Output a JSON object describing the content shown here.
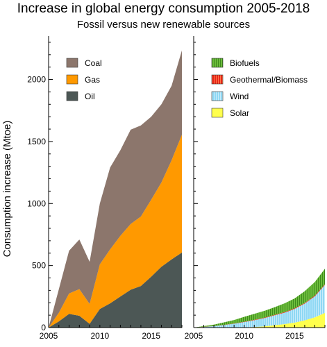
{
  "title": "Increase in global energy consumption 2005-2018",
  "subtitle": "Fossil versus new renewable sources",
  "colors": {
    "coal": "#8c766c",
    "gas": "#ff9900",
    "oil": "#4c5755",
    "biofuels": "#6cbc3c",
    "geothermal": "#e8261a",
    "wind": "#8fd8f4",
    "solar": "#ffff4d"
  },
  "chart_data": [
    {
      "type": "area",
      "stacked": true,
      "x": [
        2005,
        2006,
        2007,
        2008,
        2009,
        2010,
        2011,
        2012,
        2013,
        2014,
        2015,
        2016,
        2017,
        2018
      ],
      "series": [
        {
          "name": "Oil",
          "values": [
            0,
            50,
            110,
            95,
            30,
            150,
            195,
            250,
            305,
            335,
            410,
            490,
            550,
            605
          ]
        },
        {
          "name": "Gas",
          "values": [
            0,
            70,
            165,
            215,
            160,
            360,
            435,
            490,
            530,
            560,
            620,
            680,
            800,
            950
          ]
        },
        {
          "name": "Coal",
          "values": [
            0,
            190,
            345,
            400,
            340,
            490,
            660,
            690,
            760,
            735,
            670,
            630,
            600,
            680
          ]
        }
      ],
      "xlim": [
        2005,
        2018
      ],
      "ylim": [
        0,
        2350
      ],
      "xticks": [
        "2005",
        "2010",
        "2015"
      ],
      "yticks": [
        "0",
        "500",
        "1000",
        "1500",
        "2000"
      ],
      "ylabel": "Consumption increase (Mtoe)",
      "legend": [
        "Coal",
        "Gas",
        "Oil"
      ],
      "legend_position": "top-left"
    },
    {
      "type": "area",
      "stacked": true,
      "x": [
        2005,
        2006,
        2007,
        2008,
        2009,
        2010,
        2011,
        2012,
        2013,
        2014,
        2015,
        2016,
        2017,
        2018
      ],
      "series": [
        {
          "name": "Solar",
          "values": [
            0,
            0,
            0,
            0,
            1,
            2,
            5,
            10,
            18,
            28,
            40,
            58,
            82,
            118
          ]
        },
        {
          "name": "Wind",
          "values": [
            0,
            5,
            11,
            20,
            30,
            42,
            54,
            66,
            80,
            92,
            110,
            135,
            170,
            225
          ]
        },
        {
          "name": "Geothermal/Biomass",
          "values": [
            0,
            1,
            1,
            2,
            2,
            3,
            3,
            4,
            4,
            5,
            5,
            5,
            6,
            6
          ]
        },
        {
          "name": "Biofuels",
          "values": [
            0,
            6,
            12,
            20,
            28,
            40,
            48,
            55,
            62,
            70,
            80,
            95,
            110,
            125
          ]
        }
      ],
      "xlim": [
        2005,
        2018
      ],
      "ylim": [
        0,
        2350
      ],
      "xticks": [
        "2005",
        "2010",
        "2015"
      ],
      "legend": [
        "Biofuels",
        "Geothermal/Biomass",
        "Wind",
        "Solar"
      ],
      "legend_position": "top-left"
    }
  ]
}
